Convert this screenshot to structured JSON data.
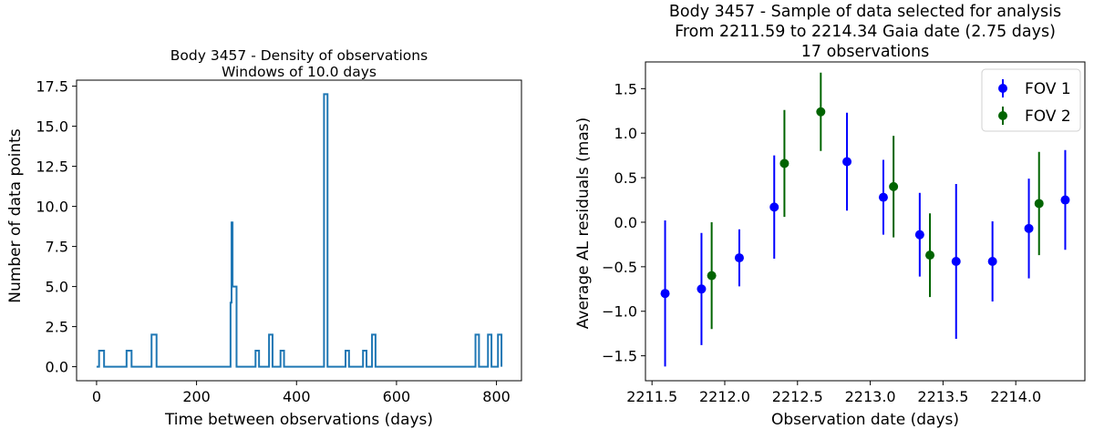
{
  "chart_data": [
    {
      "type": "line",
      "title": "Body 3457 - Density of observations",
      "subtitle": "Windows of 10.0 days",
      "xlabel": "Time between observations (days)",
      "ylabel": "Number of data points",
      "xlim": [
        -40,
        850
      ],
      "ylim": [
        -0.875,
        17.875
      ],
      "xticks": [
        0,
        200,
        400,
        600,
        800
      ],
      "xtick_labels": [
        "0",
        "200",
        "400",
        "600",
        "800"
      ],
      "yticks": [
        0,
        2.5,
        5,
        7.5,
        10,
        12.5,
        15,
        17.5
      ],
      "ytick_labels": [
        "0.0",
        "2.5",
        "5.0",
        "7.5",
        "10.0",
        "12.5",
        "15.0",
        "17.5"
      ],
      "color": "#1f77b4",
      "step": true,
      "x": [
        0,
        5,
        15,
        55,
        60,
        70,
        105,
        110,
        120,
        265,
        268,
        270,
        272,
        275,
        280,
        315,
        318,
        325,
        342,
        345,
        352,
        365,
        368,
        375,
        452,
        455,
        462,
        495,
        498,
        505,
        530,
        533,
        540,
        548,
        551,
        558,
        755,
        758,
        765,
        780,
        783,
        790,
        800,
        803,
        810
      ],
      "y": [
        0,
        1,
        0,
        0,
        1,
        0,
        0,
        2,
        0,
        0,
        4,
        9,
        5,
        5,
        0,
        0,
        1,
        0,
        0,
        2,
        0,
        0,
        1,
        0,
        0,
        17,
        0,
        0,
        1,
        0,
        0,
        1,
        0,
        0,
        2,
        0,
        0,
        2,
        0,
        0,
        2,
        0,
        0,
        2,
        0
      ]
    },
    {
      "type": "scatter",
      "title": "Body 3457 - Sample of data selected for analysis",
      "subtitle": "From 2211.59 to 2214.34 Gaia date (2.75 days)",
      "subtitle2": "17 observations",
      "xlabel": "Observation date (days)",
      "ylabel": "Average AL residuals (mas)",
      "xlim": [
        2211.455,
        2214.475
      ],
      "ylim": [
        -1.78,
        1.8
      ],
      "xticks": [
        2211.5,
        2212.0,
        2212.5,
        2213.0,
        2213.5,
        2214.0
      ],
      "xtick_labels": [
        "2211.5",
        "2212.0",
        "2212.5",
        "2213.0",
        "2213.5",
        "2214.0"
      ],
      "yticks": [
        -1.5,
        -1.0,
        -0.5,
        0.0,
        0.5,
        1.0,
        1.5
      ],
      "ytick_labels": [
        "−1.5",
        "−1.0",
        "−0.5",
        "0.0",
        "0.5",
        "1.0",
        "1.5"
      ],
      "legend": "top-right",
      "series": [
        {
          "name": "FOV 1",
          "color": "#0000ff",
          "x": [
            2211.59,
            2211.84,
            2212.1,
            2212.34,
            2212.84,
            2213.09,
            2213.34,
            2213.59,
            2213.84,
            2214.09,
            2214.34
          ],
          "y": [
            -0.8,
            -0.75,
            -0.4,
            0.17,
            0.68,
            0.28,
            -0.14,
            -0.44,
            -0.44,
            -0.07,
            0.25
          ],
          "err": [
            0.82,
            0.63,
            0.32,
            0.58,
            0.55,
            0.42,
            0.47,
            0.87,
            0.45,
            0.56,
            0.56
          ]
        },
        {
          "name": "FOV 2",
          "color": "#006400",
          "x": [
            2211.91,
            2212.41,
            2212.66,
            2213.16,
            2213.41,
            2214.16
          ],
          "y": [
            -0.6,
            0.66,
            1.24,
            0.4,
            -0.37,
            0.21
          ],
          "err": [
            0.6,
            0.6,
            0.44,
            0.57,
            0.47,
            0.58
          ]
        }
      ]
    }
  ]
}
